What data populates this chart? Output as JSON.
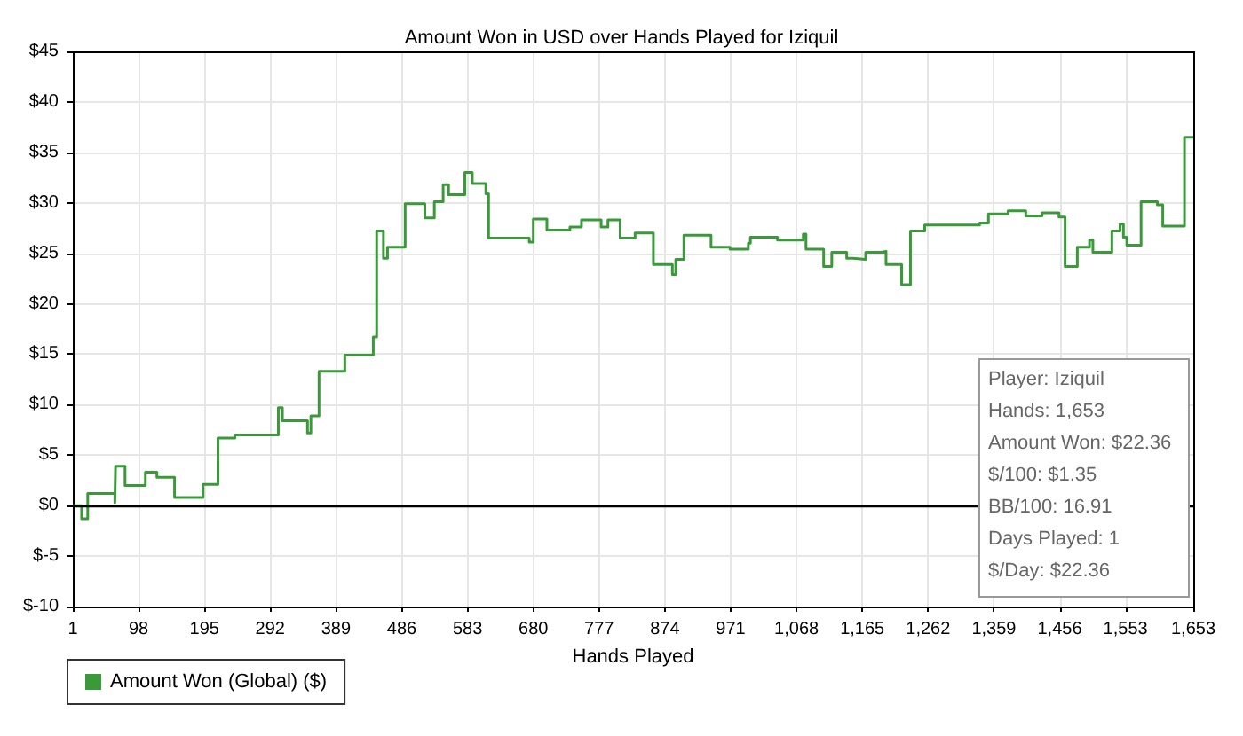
{
  "chart_data": {
    "type": "step",
    "title": "Amount Won in USD over Hands Played for Iziquil",
    "xlabel": "Hands Played",
    "x": [
      1,
      14,
      23,
      63,
      64,
      78,
      108,
      125,
      151,
      193,
      215,
      240,
      304,
      310,
      347,
      352,
      364,
      402,
      444,
      449,
      459,
      465,
      491,
      520,
      534,
      547,
      555,
      579,
      590,
      610,
      614,
      674,
      680,
      700,
      734,
      751,
      780,
      790,
      808,
      830,
      857,
      885,
      890,
      902,
      942,
      970,
      997,
      1000,
      1040,
      1078,
      1082,
      1108,
      1120,
      1142,
      1151,
      1170,
      1193,
      1200,
      1223,
      1236,
      1257,
      1338,
      1351,
      1380,
      1406,
      1430,
      1455,
      1464,
      1482,
      1500,
      1505,
      1533,
      1545,
      1550,
      1555,
      1576,
      1600,
      1608,
      1640,
      1653
    ],
    "series": [
      {
        "name": "Amount Won (Global) ($)",
        "color": "#3a9a3a",
        "values": [
          0,
          -1.3,
          1.2,
          0.3,
          3.9,
          2.0,
          3.3,
          2.8,
          0.8,
          2.1,
          6.7,
          7.0,
          9.7,
          8.4,
          7.2,
          8.9,
          13.3,
          14.9,
          16.7,
          27.2,
          24.5,
          25.6,
          29.9,
          28.5,
          30.1,
          31.8,
          30.8,
          33.0,
          31.9,
          30.9,
          26.5,
          26.1,
          28.4,
          27.3,
          27.6,
          28.3,
          27.6,
          28.3,
          26.5,
          27.0,
          23.9,
          22.9,
          24.4,
          26.8,
          25.6,
          25.4,
          26.0,
          26.6,
          26.3,
          26.9,
          25.4,
          23.7,
          25.1,
          24.5,
          24.4,
          25.1,
          25.2,
          23.9,
          21.9,
          27.2,
          27.8,
          28.0,
          28.9,
          29.2,
          28.7,
          29.0,
          28.6,
          23.7,
          25.6,
          26.3,
          25.1,
          27.2,
          27.9,
          26.6,
          25.8,
          30.1,
          29.8,
          27.7,
          36.5,
          36.4
        ]
      }
    ],
    "xlim": [
      1,
      1653
    ],
    "xticks": [
      1,
      98,
      195,
      292,
      389,
      486,
      583,
      680,
      777,
      874,
      971,
      {
        "value": 1068,
        "label": "1,068"
      },
      {
        "value": 1165,
        "label": "1,165"
      },
      {
        "value": 1262,
        "label": "1,262"
      },
      {
        "value": 1359,
        "label": "1,359"
      },
      {
        "value": 1456,
        "label": "1,456"
      },
      {
        "value": 1553,
        "label": "1,553"
      },
      {
        "value": 1653,
        "label": "1,653"
      }
    ],
    "ylim": [
      -10,
      45
    ],
    "yticks": [
      {
        "value": -10,
        "label": "$-10"
      },
      {
        "value": -5,
        "label": "$-5"
      },
      {
        "value": 0,
        "label": "$0"
      },
      {
        "value": 5,
        "label": "$5"
      },
      {
        "value": 10,
        "label": "$10"
      },
      {
        "value": 15,
        "label": "$15"
      },
      {
        "value": 20,
        "label": "$20"
      },
      {
        "value": 25,
        "label": "$25"
      },
      {
        "value": 30,
        "label": "$30"
      },
      {
        "value": 35,
        "label": "$35"
      },
      {
        "value": 40,
        "label": "$40"
      },
      {
        "value": 45,
        "label": "$45"
      }
    ],
    "ref_lines": [
      {
        "axis": "y",
        "value": 0,
        "color": "#000000"
      }
    ],
    "annotations": [
      "Player: Iziquil",
      "Hands: 1,653",
      "Amount Won: $22.36",
      "$/100: $1.35",
      "BB/100: 16.91",
      "Days Played: 1",
      "$/Day: $22.36"
    ],
    "grid": true,
    "legend": "bottom left",
    "marker": "none",
    "line_style": "solid"
  }
}
